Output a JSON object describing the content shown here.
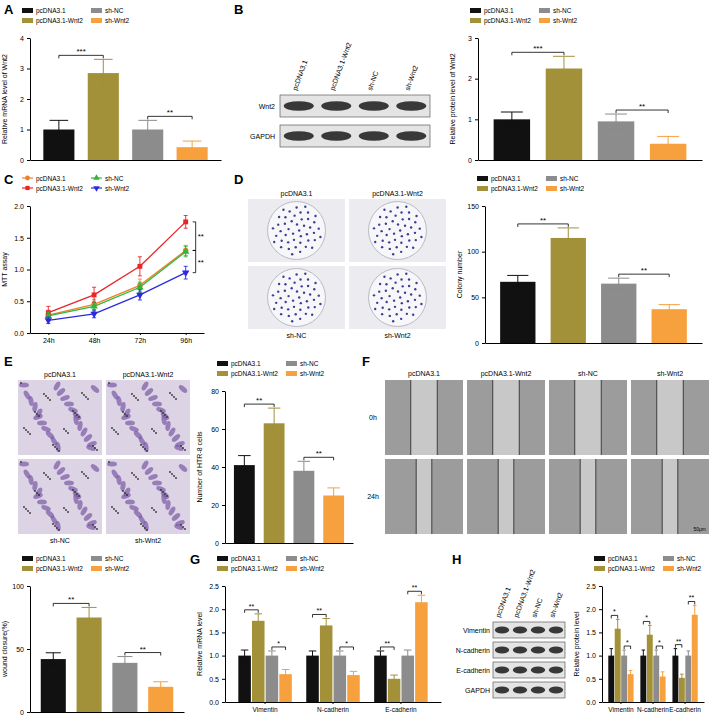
{
  "chart_data": [
    {
      "type": "bar",
      "y_label": "Relative mRNA level of Wnt2",
      "categories": [
        "pcDNA3.1",
        "pcDNA3.1-Wnt2",
        "sh-NC",
        "sh-Wnt2"
      ],
      "values": [
        1.0,
        2.85,
        1.0,
        0.42
      ],
      "errors": [
        0.3,
        0.45,
        0.3,
        0.2
      ],
      "colors": [
        "#111111",
        "#a3913a",
        "#8c8c8c",
        "#f7a13e"
      ],
      "ylim": [
        0,
        4
      ],
      "yticks": [
        0,
        1,
        2,
        3,
        4
      ],
      "legend": "top",
      "tick_labels": "y",
      "annotations": [
        {
          "label": "***",
          "pair": [
            0,
            1
          ]
        },
        {
          "label": "**",
          "pair": [
            2,
            3
          ]
        }
      ]
    },
    {
      "type": "bar",
      "y_label": "Relative protein level of Wnt2",
      "categories": [
        "pcDNA3.1",
        "pcDNA3.1-Wnt2",
        "sh-NC",
        "sh-Wnt2"
      ],
      "values": [
        1.0,
        2.25,
        0.95,
        0.4
      ],
      "errors": [
        0.18,
        0.3,
        0.18,
        0.18
      ],
      "colors": [
        "#111111",
        "#a3913a",
        "#8c8c8c",
        "#f7a13e"
      ],
      "ylim": [
        0,
        3
      ],
      "yticks": [
        0,
        1,
        2,
        3
      ],
      "legend": "top",
      "tick_labels": "y",
      "annotations": [
        {
          "label": "***",
          "pair": [
            0,
            1
          ]
        },
        {
          "label": "**",
          "pair": [
            2,
            3
          ]
        }
      ]
    },
    {
      "type": "line",
      "y_label": "MTT assay",
      "categories": [
        "24h",
        "48h",
        "72h",
        "96h"
      ],
      "series": [
        {
          "name": "pcDNA3.1",
          "color": "#f07f2a",
          "marker": "circle",
          "values": [
            0.28,
            0.45,
            0.75,
            1.3
          ],
          "errors": [
            0.08,
            0.08,
            0.1,
            0.08
          ]
        },
        {
          "name": "pcDNA3.1-Wnt2",
          "color": "#e8262a",
          "marker": "square",
          "values": [
            0.32,
            0.6,
            1.05,
            1.75
          ],
          "errors": [
            0.1,
            0.12,
            0.15,
            0.1
          ]
        },
        {
          "name": "sh-NC",
          "color": "#2db83d",
          "marker": "triangle",
          "values": [
            0.27,
            0.42,
            0.72,
            1.28
          ],
          "errors": [
            0.06,
            0.08,
            0.08,
            0.08
          ]
        },
        {
          "name": "sh-Wnt2",
          "color": "#2a2ae0",
          "marker": "triangle-down",
          "values": [
            0.2,
            0.3,
            0.6,
            0.95
          ],
          "errors": [
            0.05,
            0.06,
            0.08,
            0.1
          ]
        }
      ],
      "ylim": [
        0,
        2
      ],
      "yticks": [
        {
          "value": 0,
          "label": "0.0"
        },
        0.5,
        {
          "value": 1,
          "label": "1.0"
        },
        1.5,
        {
          "value": 2,
          "label": "2.0"
        }
      ],
      "legend": "top",
      "annotations": [
        {
          "label": "**",
          "pair": [
            1,
            0
          ],
          "at": 3
        },
        {
          "label": "**",
          "pair": [
            0,
            3
          ],
          "at": 3
        }
      ]
    },
    {
      "type": "bar",
      "y_label": "Colony number",
      "categories": [
        "pcDNA3.1",
        "pcDNA3.1-Wnt2",
        "sh-NC",
        "sh-Wnt2"
      ],
      "values": [
        67,
        115,
        65,
        37
      ],
      "errors": [
        7,
        11,
        6,
        5
      ],
      "colors": [
        "#111111",
        "#a3913a",
        "#8c8c8c",
        "#f7a13e"
      ],
      "ylim": [
        0,
        150
      ],
      "yticks": [
        0,
        50,
        100,
        150
      ],
      "legend": "top",
      "tick_labels": "y",
      "annotations": [
        {
          "label": "**",
          "pair": [
            0,
            1
          ]
        },
        {
          "label": "**",
          "pair": [
            2,
            3
          ]
        }
      ]
    },
    {
      "type": "bar",
      "y_label": "Number of HTR-8 cells",
      "categories": [
        "pcDNA3.1",
        "pcDNA3.1-Wnt2",
        "sh-NC",
        "sh-Wnt2"
      ],
      "values": [
        41,
        63,
        38,
        25
      ],
      "errors": [
        5,
        8,
        5,
        4
      ],
      "colors": [
        "#111111",
        "#a3913a",
        "#8c8c8c",
        "#f7a13e"
      ],
      "ylim": [
        0,
        80
      ],
      "yticks": [
        0,
        20,
        40,
        60,
        80
      ],
      "legend": "top",
      "tick_labels": "y",
      "annotations": [
        {
          "label": "**",
          "pair": [
            0,
            1
          ]
        },
        {
          "label": "**",
          "pair": [
            2,
            3
          ]
        }
      ]
    },
    {
      "type": "bar",
      "y_label": "wound closure(%)",
      "categories": [
        "pcDNA3.1",
        "pcDNA3.1-Wnt2",
        "sh-NC",
        "sh-Wnt2"
      ],
      "values": [
        42,
        75,
        39,
        20
      ],
      "errors": [
        5,
        8,
        5,
        4
      ],
      "colors": [
        "#111111",
        "#a3913a",
        "#8c8c8c",
        "#f7a13e"
      ],
      "ylim": [
        0,
        100
      ],
      "yticks": [
        0,
        50,
        100
      ],
      "legend": "top",
      "tick_labels": "y",
      "annotations": [
        {
          "label": "**",
          "pair": [
            0,
            1
          ]
        },
        {
          "label": "**",
          "pair": [
            2,
            3
          ]
        }
      ]
    },
    {
      "type": "bar",
      "y_label": "Relative mRNA level",
      "categories": [
        "Vimentin",
        "N-cadherin",
        "E-cadherin"
      ],
      "series": [
        {
          "name": "pcDNA3.1",
          "color": "#111111",
          "values": [
            1.0,
            1.0,
            1.0
          ],
          "errors": [
            0.12,
            0.1,
            0.1
          ]
        },
        {
          "name": "pcDNA3.1-Wnt2",
          "color": "#a3913a",
          "values": [
            1.75,
            1.65,
            0.5
          ],
          "errors": [
            0.15,
            0.15,
            0.08
          ]
        },
        {
          "name": "sh-NC",
          "color": "#8c8c8c",
          "values": [
            1.0,
            1.0,
            1.0
          ],
          "errors": [
            0.1,
            0.1,
            0.12
          ]
        },
        {
          "name": "sh-Wnt2",
          "color": "#f7a13e",
          "values": [
            0.6,
            0.58,
            2.15
          ],
          "errors": [
            0.1,
            0.08,
            0.15
          ]
        }
      ],
      "ylim": [
        0,
        2.5
      ],
      "yticks": [
        {
          "value": 0,
          "label": "0.0"
        },
        0.5,
        {
          "value": 1,
          "label": "1.0"
        },
        1.5,
        {
          "value": 2,
          "label": "2.0"
        },
        2.5
      ],
      "legend": "top",
      "annotations": [
        {
          "label": "**",
          "category": 0,
          "pair": [
            0,
            1
          ]
        },
        {
          "label": "*",
          "category": 0,
          "pair": [
            2,
            3
          ]
        },
        {
          "label": "**",
          "category": 1,
          "pair": [
            0,
            1
          ]
        },
        {
          "label": "*",
          "category": 1,
          "pair": [
            2,
            3
          ]
        },
        {
          "label": "**",
          "category": 2,
          "pair": [
            0,
            1
          ]
        },
        {
          "label": "**",
          "category": 2,
          "pair": [
            2,
            3
          ]
        }
      ]
    },
    {
      "type": "bar",
      "y_label": "Relative protein level",
      "categories": [
        "Vimentin",
        "N-cadherin",
        "E-cadherin"
      ],
      "series": [
        {
          "name": "pcDNA3.1",
          "color": "#111111",
          "values": [
            1.0,
            1.0,
            1.0
          ],
          "errors": [
            0.15,
            0.12,
            0.15
          ]
        },
        {
          "name": "pcDNA3.1-Wnt2",
          "color": "#a3913a",
          "values": [
            1.58,
            1.45,
            0.52
          ],
          "errors": [
            0.2,
            0.2,
            0.08
          ]
        },
        {
          "name": "sh-NC",
          "color": "#8c8c8c",
          "values": [
            1.0,
            1.0,
            1.0
          ],
          "errors": [
            0.12,
            0.12,
            0.1
          ]
        },
        {
          "name": "sh-Wnt2",
          "color": "#f7a13e",
          "values": [
            0.6,
            0.55,
            1.88
          ],
          "errors": [
            0.08,
            0.1,
            0.2
          ]
        }
      ],
      "ylim": [
        0,
        2.5
      ],
      "yticks": [
        {
          "value": 0,
          "label": "0.0"
        },
        0.5,
        {
          "value": 1,
          "label": "1.0"
        },
        1.5,
        {
          "value": 2,
          "label": "2.0"
        },
        2.5
      ],
      "legend": "top",
      "annotations": [
        {
          "label": "*",
          "category": 0,
          "pair": [
            0,
            1
          ]
        },
        {
          "label": "*",
          "category": 0,
          "pair": [
            2,
            3
          ]
        },
        {
          "label": "*",
          "category": 1,
          "pair": [
            0,
            1
          ]
        },
        {
          "label": "*",
          "category": 1,
          "pair": [
            2,
            3
          ]
        },
        {
          "label": "**",
          "category": 2,
          "pair": [
            0,
            1
          ]
        },
        {
          "label": "**",
          "category": 2,
          "pair": [
            2,
            3
          ]
        }
      ]
    }
  ],
  "figure": {
    "panel_labels": [
      "A",
      "B",
      "C",
      "D",
      "E",
      "F",
      "G",
      "H"
    ],
    "blot_b": {
      "lanes": [
        "pcDNA3.1",
        "pcDNA3.1-Wnt2",
        "sh-NC",
        "sh-Wnt2"
      ],
      "bands": [
        "Wnt2",
        "GAPDH"
      ]
    },
    "plates_d": [
      "pcDNA3.1",
      "pcDNA3.1-Wnt2",
      "sh-NC",
      "sh-Wnt2"
    ],
    "fields_e": [
      "pcDNA3.1",
      "pcDNA3.1-Wnt2",
      "sh-NC",
      "sh-Wnt2"
    ],
    "wound_f": {
      "lanes": [
        "pcDNA3.1",
        "pcDNA3.1-Wnt2",
        "sh-NC",
        "sh-Wnt2"
      ],
      "times": [
        "0h",
        "24h"
      ],
      "scale_bar": "50μm"
    },
    "blot_h": {
      "lanes": [
        "pcDNA3.1",
        "pcDNA3.1-Wnt2",
        "sh-NC",
        "sh-Wnt2"
      ],
      "bands": [
        "Vimentin",
        "N-cadherin",
        "E-cadherin",
        "GAPDH"
      ]
    }
  }
}
